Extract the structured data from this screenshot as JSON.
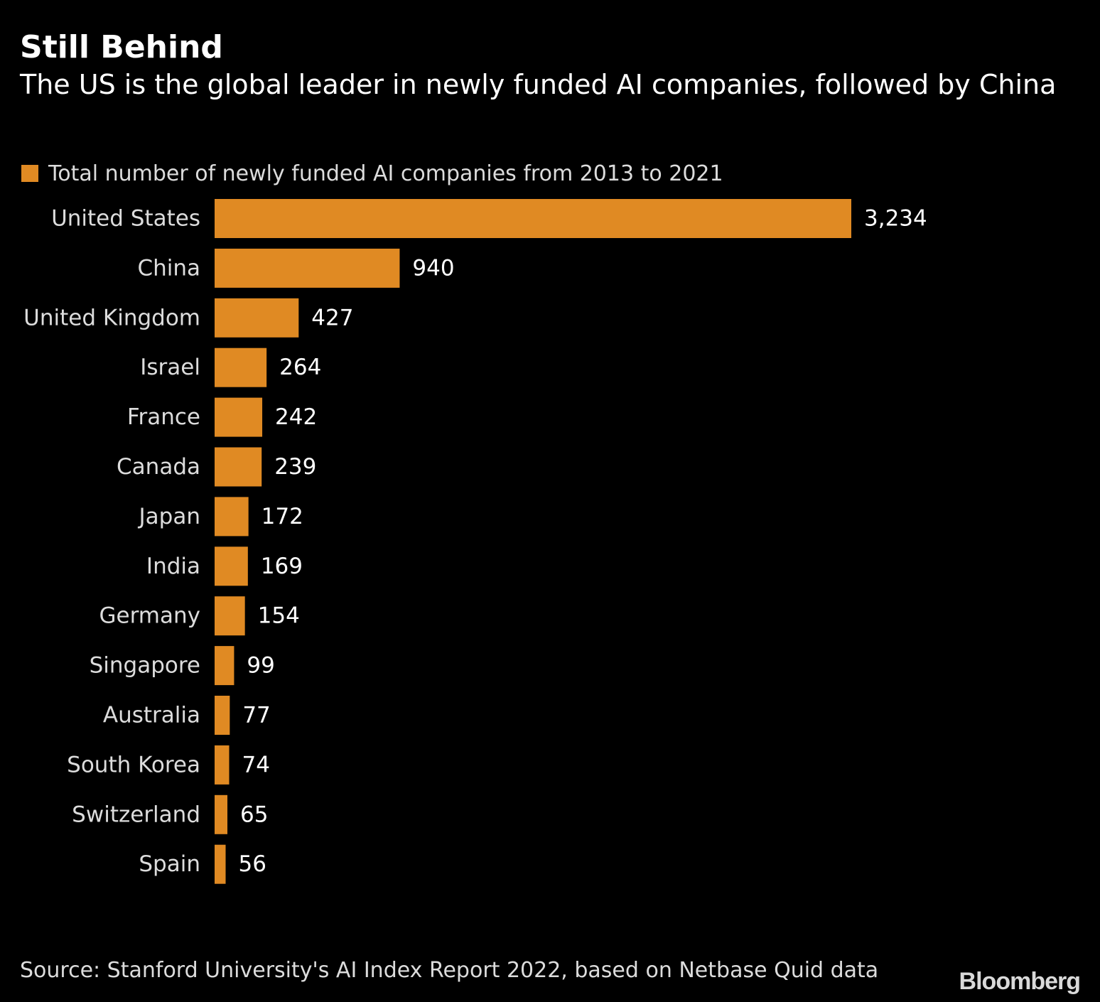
{
  "chart_data": {
    "type": "bar",
    "orientation": "horizontal",
    "title": "Still Behind",
    "subtitle": "The US is the global leader in newly funded AI companies, followed by China",
    "categories": [
      "United States",
      "China",
      "United Kingdom",
      "Israel",
      "France",
      "Canada",
      "Japan",
      "India",
      "Germany",
      "Singapore",
      "Australia",
      "South Korea",
      "Switzerland",
      "Spain"
    ],
    "series": [
      {
        "name": "Total number of newly funded AI companies from 2013 to 2021",
        "values": [
          3234,
          940,
          427,
          264,
          242,
          239,
          172,
          169,
          154,
          99,
          77,
          74,
          65,
          56
        ]
      }
    ],
    "value_labels": [
      "3,234",
      "940",
      "427",
      "264",
      "242",
      "239",
      "172",
      "169",
      "154",
      "99",
      "77",
      "74",
      "65",
      "56"
    ],
    "xlabel": "",
    "ylabel": "",
    "xlim": [
      0,
      3234
    ],
    "grid": false,
    "legend_position": "top-left",
    "bar_color": "#E08A23",
    "source": "Source: Stanford University's AI Index Report 2022, based on Netbase Quid data",
    "brand": "Bloomberg"
  }
}
